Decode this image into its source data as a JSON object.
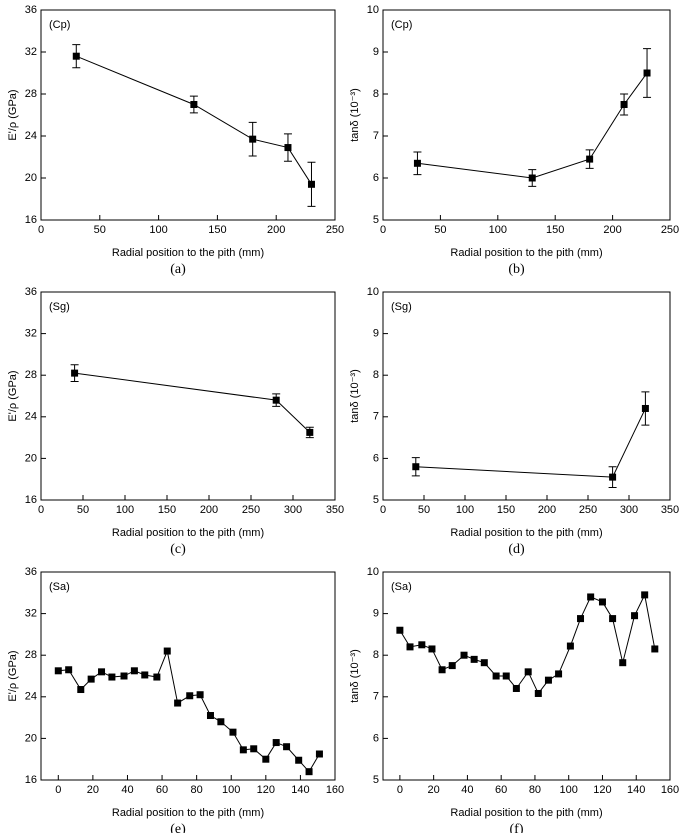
{
  "chart_data": [
    {
      "type": "line",
      "label": "(a)",
      "annotation": "(Cp)",
      "x_label": "Radial position to the pith (mm)",
      "y_label": "E'/ρ (GPa)",
      "color": "#000000",
      "x": [
        30,
        130,
        180,
        210,
        230
      ],
      "values": [
        31.6,
        27.0,
        23.7,
        22.9,
        19.4
      ],
      "errors": [
        1.1,
        0.8,
        1.6,
        1.3,
        2.1
      ],
      "xlim": [
        0,
        250
      ],
      "xticks": [
        0,
        50,
        100,
        150,
        200,
        250
      ],
      "ylim": [
        16,
        36
      ],
      "yticks": [
        16,
        20,
        24,
        28,
        32,
        36
      ]
    },
    {
      "type": "line",
      "label": "(b)",
      "annotation": "(Cp)",
      "x_label": "Radial position to the pith (mm)",
      "y_label": "tanδ (10⁻³)",
      "color": "#000000",
      "x": [
        30,
        130,
        180,
        210,
        230
      ],
      "values": [
        6.35,
        6.0,
        6.45,
        7.75,
        8.5
      ],
      "errors": [
        0.27,
        0.2,
        0.22,
        0.25,
        0.58
      ],
      "xlim": [
        0,
        250
      ],
      "xticks": [
        0,
        50,
        100,
        150,
        200,
        250
      ],
      "ylim": [
        5,
        10
      ],
      "yticks": [
        5,
        6,
        7,
        8,
        9,
        10
      ]
    },
    {
      "type": "line",
      "label": "(c)",
      "annotation": "(Sg)",
      "x_label": "Radial position to the pith (mm)",
      "y_label": "E'/ρ (GPa)",
      "color": "#000000",
      "x": [
        40,
        280,
        320
      ],
      "values": [
        28.2,
        25.6,
        22.5
      ],
      "errors": [
        0.8,
        0.6,
        0.5
      ],
      "xlim": [
        0,
        350
      ],
      "xticks": [
        0,
        50,
        100,
        150,
        200,
        250,
        300,
        350
      ],
      "ylim": [
        16,
        36
      ],
      "yticks": [
        16,
        20,
        24,
        28,
        32,
        36
      ]
    },
    {
      "type": "line",
      "label": "(d)",
      "annotation": "(Sg)",
      "x_label": "Radial position to the pith (mm)",
      "y_label": "tanδ (10⁻³)",
      "color": "#000000",
      "x": [
        40,
        280,
        320
      ],
      "values": [
        5.8,
        5.55,
        7.2
      ],
      "errors": [
        0.22,
        0.25,
        0.4
      ],
      "xlim": [
        0,
        350
      ],
      "xticks": [
        0,
        50,
        100,
        150,
        200,
        250,
        300,
        350
      ],
      "ylim": [
        5,
        10
      ],
      "yticks": [
        5,
        6,
        7,
        8,
        9,
        10
      ]
    },
    {
      "type": "line",
      "label": "(e)",
      "annotation": "(Sa)",
      "x_label": "Radial position to the pith (mm)",
      "y_label": "E'/ρ (GPa)",
      "color": "#000000",
      "x": [
        0,
        6,
        13,
        19,
        25,
        31,
        38,
        44,
        50,
        57,
        63,
        69,
        76,
        82,
        88,
        94,
        101,
        107,
        113,
        120,
        126,
        132,
        139,
        145,
        151
      ],
      "values": [
        26.5,
        26.6,
        24.7,
        25.7,
        26.4,
        25.9,
        26.0,
        26.5,
        26.1,
        25.9,
        28.4,
        23.4,
        24.1,
        24.2,
        22.2,
        21.6,
        20.6,
        18.9,
        19.0,
        18.0,
        19.6,
        19.2,
        17.9,
        16.8,
        18.5
      ],
      "xlim": [
        -10,
        160
      ],
      "xticks": [
        0,
        20,
        40,
        60,
        80,
        100,
        120,
        140,
        160
      ],
      "ylim": [
        16,
        36
      ],
      "yticks": [
        16,
        20,
        24,
        28,
        32,
        36
      ]
    },
    {
      "type": "line",
      "label": "(f)",
      "annotation": "(Sa)",
      "x_label": "Radial position to the pith (mm)",
      "y_label": "tanδ (10⁻³)",
      "color": "#000000",
      "x": [
        0,
        6,
        13,
        19,
        25,
        31,
        38,
        44,
        50,
        57,
        63,
        69,
        76,
        82,
        88,
        94,
        101,
        107,
        113,
        120,
        126,
        132,
        139,
        145,
        151
      ],
      "values": [
        8.6,
        8.2,
        8.25,
        8.15,
        7.65,
        7.75,
        8.0,
        7.9,
        7.82,
        7.5,
        7.5,
        7.2,
        7.6,
        7.08,
        7.4,
        7.55,
        8.22,
        8.88,
        9.4,
        9.28,
        8.88,
        7.82,
        8.95,
        9.45,
        8.15
      ],
      "xlim": [
        -10,
        160
      ],
      "xticks": [
        0,
        20,
        40,
        60,
        80,
        100,
        120,
        140,
        160
      ],
      "ylim": [
        5,
        10
      ],
      "yticks": [
        5,
        6,
        7,
        8,
        9,
        10
      ]
    }
  ]
}
